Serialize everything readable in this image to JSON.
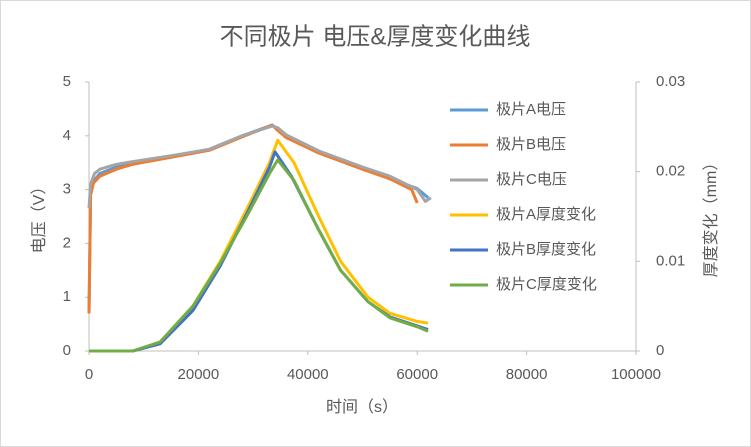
{
  "chart_data": {
    "type": "line",
    "title": "不同极片   电压&厚度变化曲线",
    "x_label": "时间（s）",
    "y_label": "电压（V）",
    "y2_label": "厚度变化（mm）",
    "xlim": [
      0,
      100000
    ],
    "xticks": [
      0,
      20000,
      40000,
      60000,
      80000,
      100000
    ],
    "ylim": [
      0,
      5
    ],
    "yticks": [
      0,
      1,
      2,
      3,
      4,
      5
    ],
    "y2lim": [
      0,
      0.03
    ],
    "y2ticks": [
      0,
      0.01,
      0.02,
      0.03
    ],
    "grid": false,
    "legend": "right",
    "series": [
      {
        "name": "极片A电压",
        "color": "#5b9bd5",
        "axis": "y",
        "x": [
          0,
          300,
          800,
          2000,
          5000,
          8000,
          15000,
          22000,
          28000,
          33500,
          34500,
          36000,
          42000,
          50000,
          55000,
          60000,
          62000
        ],
        "values": [
          0.7,
          2.9,
          3.15,
          3.3,
          3.42,
          3.5,
          3.62,
          3.75,
          4.0,
          4.2,
          4.12,
          4.0,
          3.7,
          3.4,
          3.2,
          3.02,
          2.85
        ]
      },
      {
        "name": "极片B电压",
        "color": "#ed7d31",
        "axis": "y",
        "x": [
          0,
          300,
          800,
          2000,
          5000,
          8000,
          15000,
          22000,
          28000,
          33500,
          34500,
          36000,
          42000,
          50000,
          55000,
          59000,
          60000
        ],
        "values": [
          0.7,
          2.9,
          3.12,
          3.25,
          3.38,
          3.47,
          3.6,
          3.73,
          3.98,
          4.2,
          4.1,
          3.97,
          3.68,
          3.38,
          3.2,
          3.0,
          2.75
        ]
      },
      {
        "name": "极片C电压",
        "color": "#a5a5a5",
        "axis": "y",
        "x": [
          0,
          300,
          1000,
          2000,
          5000,
          8000,
          15000,
          22000,
          28000,
          33500,
          34500,
          36000,
          42000,
          50000,
          55000,
          60000,
          61500,
          62500
        ],
        "values": [
          2.65,
          3.1,
          3.3,
          3.38,
          3.47,
          3.52,
          3.63,
          3.75,
          4.0,
          4.18,
          4.15,
          4.02,
          3.72,
          3.42,
          3.25,
          3.0,
          2.78,
          2.85
        ]
      },
      {
        "name": "极片A厚度变化",
        "color": "#ffc000",
        "axis": "y2",
        "x": [
          0,
          8000,
          13000,
          19000,
          24000,
          29000,
          33000,
          34500,
          37500,
          42000,
          46000,
          51000,
          55000,
          60000,
          62000
        ],
        "values": [
          0,
          0,
          0.001,
          0.005,
          0.01,
          0.016,
          0.021,
          0.0235,
          0.021,
          0.015,
          0.01,
          0.006,
          0.0042,
          0.0033,
          0.0031
        ]
      },
      {
        "name": "极片B厚度变化",
        "color": "#4472c4",
        "axis": "y2",
        "x": [
          0,
          8000,
          13000,
          19000,
          24000,
          29000,
          33000,
          34000,
          37000,
          42000,
          46000,
          51000,
          55000,
          60000,
          62000
        ],
        "values": [
          0,
          0,
          0.0008,
          0.0045,
          0.0095,
          0.0155,
          0.0205,
          0.0222,
          0.0195,
          0.0135,
          0.009,
          0.0055,
          0.0038,
          0.0028,
          0.0024
        ]
      },
      {
        "name": "极片C厚度变化",
        "color": "#70ad47",
        "axis": "y2",
        "x": [
          0,
          8000,
          13000,
          19000,
          24000,
          29000,
          33000,
          34500,
          37500,
          42000,
          46000,
          51000,
          55000,
          60000,
          62000
        ],
        "values": [
          0,
          0,
          0.001,
          0.005,
          0.0098,
          0.0152,
          0.0198,
          0.0213,
          0.019,
          0.0135,
          0.009,
          0.0055,
          0.0037,
          0.0027,
          0.0022
        ]
      }
    ]
  }
}
